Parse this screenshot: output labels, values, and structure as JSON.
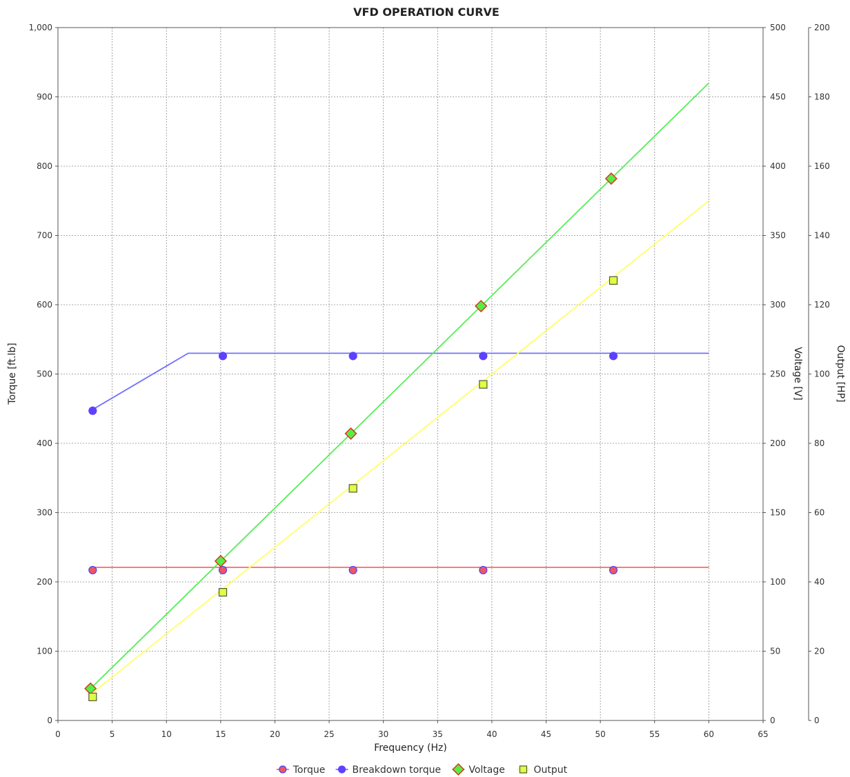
{
  "chart_data": {
    "type": "line",
    "title": "VFD OPERATION CURVE",
    "xlabel": "Frequency (Hz)",
    "xlim": [
      0,
      65
    ],
    "xticks": [
      0,
      5,
      10,
      15,
      20,
      25,
      30,
      35,
      40,
      45,
      50,
      55,
      60,
      65
    ],
    "grid": true,
    "legend_position": "bottom",
    "axes": {
      "left": {
        "label": "Torque [ft.lb]",
        "lim": [
          0,
          1000
        ],
        "ticks": [
          0,
          100,
          200,
          300,
          400,
          500,
          600,
          700,
          800,
          900,
          1000
        ],
        "tick_labels": [
          "0",
          "100",
          "200",
          "300",
          "400",
          "500",
          "600",
          "700",
          "800",
          "900",
          "1,000"
        ]
      },
      "right1": {
        "label": "Voltage [V]",
        "lim": [
          0,
          500
        ],
        "ticks": [
          0,
          50,
          100,
          150,
          200,
          250,
          300,
          350,
          400,
          450,
          500
        ]
      },
      "right2": {
        "label": "Output [HP]",
        "lim": [
          0,
          200
        ],
        "ticks": [
          0,
          20,
          40,
          60,
          80,
          100,
          120,
          140,
          160,
          180,
          200
        ]
      }
    },
    "series": [
      {
        "name": "Torque",
        "axis": "left",
        "color": "#ff6666",
        "marker": "circle",
        "marker_fill": "#ee5566",
        "marker_stroke": "#4444ff",
        "line": [
          [
            3,
            221
          ],
          [
            60,
            221
          ]
        ],
        "markers": [
          [
            3.2,
            217
          ],
          [
            15.2,
            217
          ],
          [
            27.2,
            217
          ],
          [
            39.2,
            217
          ],
          [
            51.2,
            217
          ]
        ]
      },
      {
        "name": "Breakdown torque",
        "axis": "left",
        "color": "#7070ff",
        "marker": "circle",
        "marker_fill": "#6040ff",
        "marker_stroke": "#6040ff",
        "line": [
          [
            3,
            447
          ],
          [
            12,
            530
          ],
          [
            60,
            530
          ]
        ],
        "markers": [
          [
            3.2,
            447
          ],
          [
            15.2,
            526
          ],
          [
            27.2,
            526
          ],
          [
            39.2,
            526
          ],
          [
            51.2,
            526
          ]
        ]
      },
      {
        "name": "Voltage",
        "axis": "right1",
        "color": "#55ee55",
        "marker": "diamond",
        "marker_fill": "#55ee44",
        "marker_stroke": "#dd3322",
        "line": [
          [
            3,
            23
          ],
          [
            60,
            460
          ]
        ],
        "markers": [
          [
            3,
            23
          ],
          [
            15,
            115
          ],
          [
            27,
            207
          ],
          [
            39,
            299
          ],
          [
            51,
            391
          ]
        ]
      },
      {
        "name": "Output",
        "axis": "right2",
        "color": "#ffff66",
        "marker": "square",
        "marker_fill": "#ddff44",
        "marker_stroke": "#555533",
        "line": [
          [
            3,
            7.5
          ],
          [
            60,
            150
          ]
        ],
        "markers": [
          [
            3.2,
            6.8
          ],
          [
            15.2,
            37
          ],
          [
            27.2,
            67
          ],
          [
            39.2,
            97
          ],
          [
            51.2,
            127
          ]
        ]
      }
    ]
  }
}
